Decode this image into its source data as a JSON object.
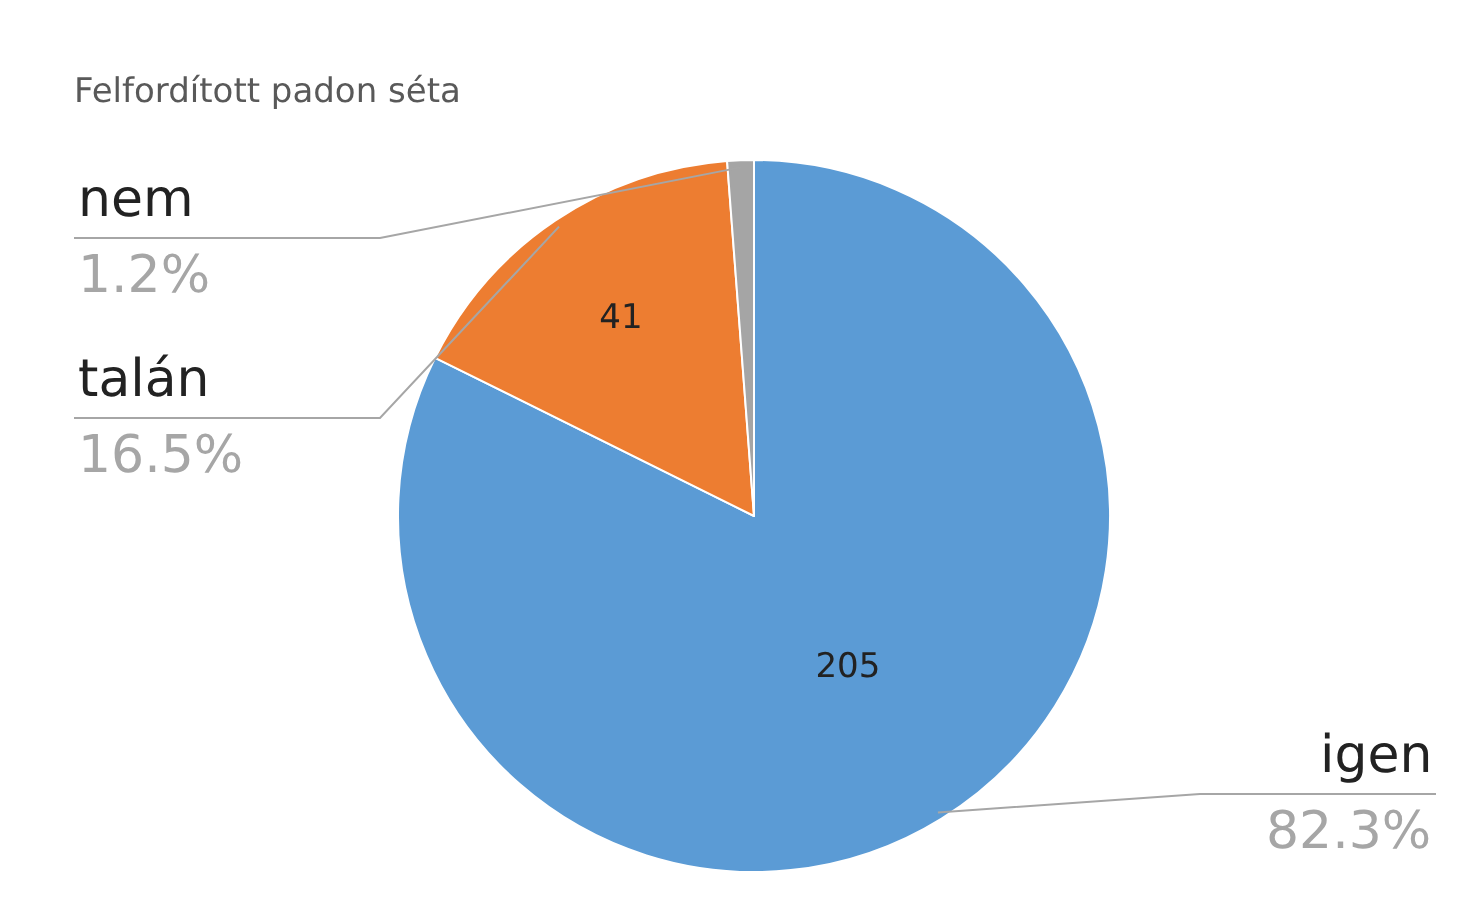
{
  "chart_data": {
    "type": "pie",
    "title": "Felfordított padon séta",
    "categories": [
      "igen",
      "talán",
      "nem"
    ],
    "values": [
      205,
      41,
      3
    ],
    "value_labels": [
      "205",
      "41",
      null
    ],
    "colors": [
      "#5b9bd5",
      "#ed7d31",
      "#a5a5a5"
    ],
    "annotations": [
      "82.3%",
      "16.5%",
      "1.2%"
    ],
    "legend": false
  }
}
